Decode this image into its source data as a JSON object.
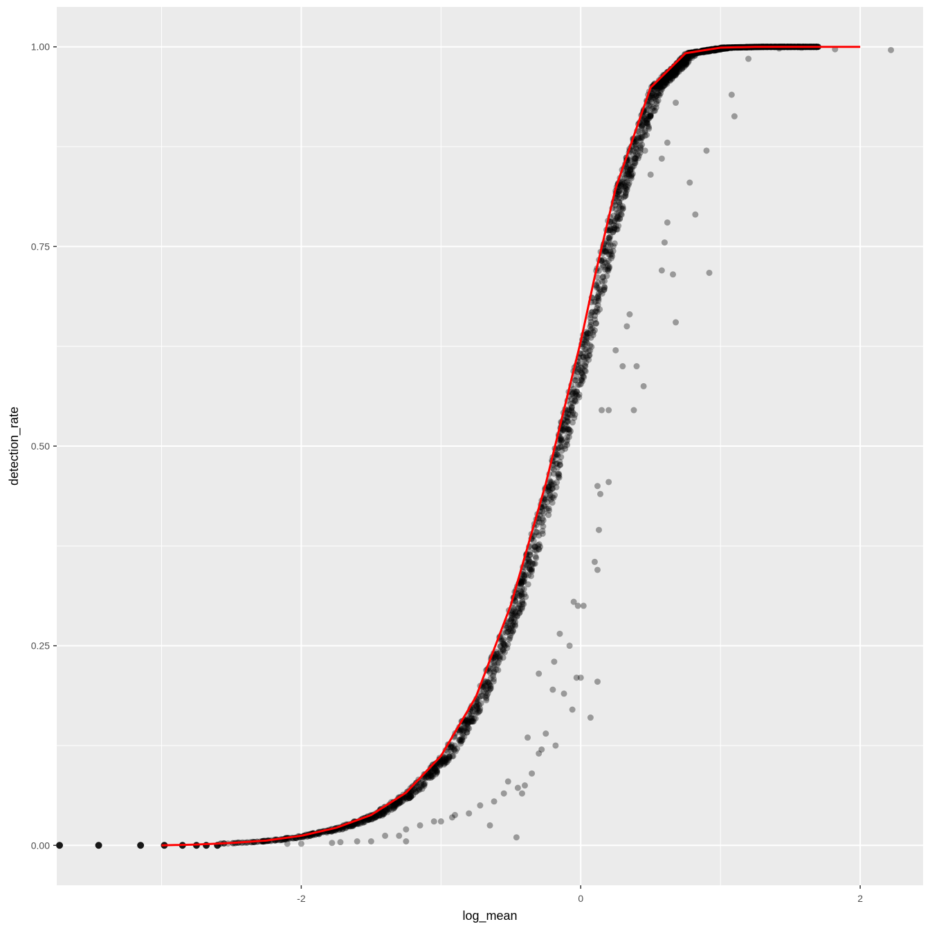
{
  "chart_data": {
    "type": "scatter",
    "title": "",
    "xlabel": "log_mean",
    "ylabel": "detection_rate",
    "xlim": [
      -3.75,
      2.45
    ],
    "ylim": [
      -0.05,
      1.05
    ],
    "grid": true,
    "legend": "none",
    "x_ticks": [
      -2,
      0,
      2
    ],
    "x_tick_labels": [
      "-2",
      "0",
      "2"
    ],
    "y_ticks": [
      0,
      0.25,
      0.5,
      0.75,
      1
    ],
    "y_tick_labels": [
      "0.00",
      "0.25",
      "0.50",
      "0.75",
      "1.00"
    ],
    "colors": {
      "panel": "#ebebeb",
      "grid": "#ffffff",
      "points": "#000000",
      "fit_line": "#ff0000"
    },
    "fit_curve": {
      "name": "",
      "x": [
        -3.0,
        -2.75,
        -2.5,
        -2.25,
        -2.0,
        -1.75,
        -1.5,
        -1.25,
        -1.0,
        -0.75,
        -0.5,
        -0.25,
        0.0,
        0.1,
        0.25,
        0.5,
        0.75,
        1.0,
        1.25,
        1.5,
        1.75,
        2.0
      ],
      "y": [
        0.0,
        0.001,
        0.003,
        0.006,
        0.012,
        0.022,
        0.038,
        0.066,
        0.112,
        0.186,
        0.301,
        0.453,
        0.631,
        0.712,
        0.823,
        0.949,
        0.992,
        0.999,
        1.0,
        1.0,
        1.0,
        1.0
      ]
    },
    "outliers": {
      "x": [
        2.22,
        1.82,
        1.58,
        1.42,
        1.2,
        1.08,
        1.1,
        0.9,
        0.78,
        0.82,
        0.68,
        0.6,
        0.58,
        0.62,
        0.66,
        0.68,
        0.58,
        0.62,
        0.5,
        0.46,
        0.35,
        0.33,
        0.3,
        0.25,
        0.2,
        0.4,
        0.45,
        0.38,
        0.2,
        0.15,
        0.12,
        0.14,
        0.13,
        0.12,
        0.1,
        0.02,
        -0.02,
        -0.05,
        -0.08,
        -0.12,
        -0.06,
        -0.03,
        0.07,
        0.12,
        0.0,
        -0.18,
        -0.15,
        -0.19,
        -0.2,
        -0.3,
        -0.25,
        -0.28,
        -0.3,
        -0.35,
        -0.42,
        -0.4,
        -0.45,
        -0.52,
        -0.55,
        -0.46,
        -0.62,
        -0.65,
        -0.72,
        -0.8,
        -0.9,
        -0.92,
        -1.0,
        -1.05,
        -1.15,
        -1.25,
        -1.3,
        -1.4,
        -1.5,
        -1.6,
        -1.72,
        -1.78,
        -2.0,
        -2.1,
        -1.25,
        -0.38,
        0.92
      ],
      "y": [
        0.996,
        0.997,
        0.999,
        0.998,
        0.985,
        0.94,
        0.913,
        0.87,
        0.83,
        0.79,
        0.655,
        0.755,
        0.72,
        0.78,
        0.715,
        0.93,
        0.86,
        0.88,
        0.84,
        0.87,
        0.665,
        0.65,
        0.6,
        0.62,
        0.545,
        0.6,
        0.575,
        0.545,
        0.455,
        0.545,
        0.45,
        0.44,
        0.395,
        0.345,
        0.355,
        0.3,
        0.3,
        0.305,
        0.25,
        0.19,
        0.17,
        0.21,
        0.16,
        0.205,
        0.21,
        0.125,
        0.265,
        0.23,
        0.195,
        0.215,
        0.14,
        0.12,
        0.115,
        0.09,
        0.065,
        0.075,
        0.072,
        0.08,
        0.065,
        0.01,
        0.055,
        0.025,
        0.05,
        0.04,
        0.038,
        0.035,
        0.03,
        0.03,
        0.025,
        0.02,
        0.012,
        0.012,
        0.005,
        0.005,
        0.004,
        0.003,
        0.002,
        0.002,
        0.005,
        0.135,
        0.717
      ],
      "note_points_at_zero_x": [
        -3.73,
        -3.45,
        -3.15,
        -2.98,
        -2.85,
        -2.75,
        -2.68,
        -2.6
      ]
    }
  }
}
